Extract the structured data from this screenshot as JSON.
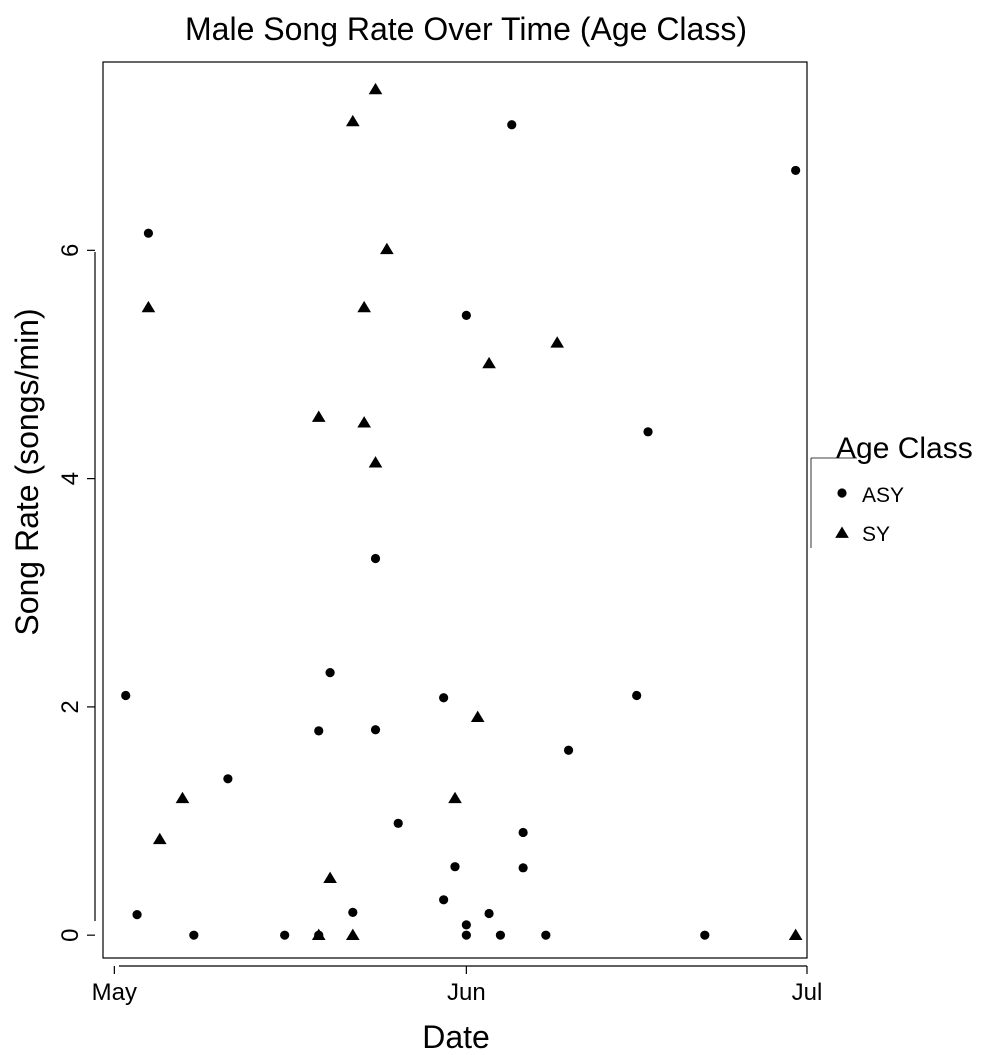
{
  "chart_data": {
    "type": "scatter",
    "title": "Male Song Rate Over Time (Age Class)",
    "xlabel": "Date",
    "ylabel": "Song Rate (songs/min)",
    "x_unit": "date",
    "xlim": [
      "2016-04-30",
      "2016-07-01"
    ],
    "ylim": [
      -0.2,
      7.65
    ],
    "x_ticks": [
      {
        "label": "May",
        "date": "2016-05-01"
      },
      {
        "label": "Jun",
        "date": "2016-06-01"
      },
      {
        "label": "Jul",
        "date": "2016-07-01"
      }
    ],
    "y_ticks": [
      0,
      2,
      4,
      6
    ],
    "grid": false,
    "legend": {
      "title": "Age Class",
      "position": "right",
      "entries": [
        {
          "label": "ASY",
          "shape": "circle"
        },
        {
          "label": "SY",
          "shape": "triangle"
        }
      ]
    },
    "series": [
      {
        "name": "ASY",
        "shape": "circle",
        "color": "#000000",
        "points": [
          {
            "x": "2016-05-02",
            "y": 2.1
          },
          {
            "x": "2016-05-03",
            "y": 0.18
          },
          {
            "x": "2016-05-04",
            "y": 6.15
          },
          {
            "x": "2016-05-08",
            "y": 0.0
          },
          {
            "x": "2016-05-11",
            "y": 1.37
          },
          {
            "x": "2016-05-16",
            "y": 0.0
          },
          {
            "x": "2016-05-19",
            "y": 0.0
          },
          {
            "x": "2016-05-19",
            "y": 1.79
          },
          {
            "x": "2016-05-20",
            "y": 2.3
          },
          {
            "x": "2016-05-22",
            "y": 0.2
          },
          {
            "x": "2016-05-24",
            "y": 3.3
          },
          {
            "x": "2016-05-24",
            "y": 1.8
          },
          {
            "x": "2016-05-26",
            "y": 0.98
          },
          {
            "x": "2016-05-30",
            "y": 2.08
          },
          {
            "x": "2016-05-30",
            "y": 0.31
          },
          {
            "x": "2016-05-31",
            "y": 0.6
          },
          {
            "x": "2016-06-01",
            "y": 5.43
          },
          {
            "x": "2016-06-01",
            "y": 0.09
          },
          {
            "x": "2016-06-01",
            "y": 0.0
          },
          {
            "x": "2016-06-03",
            "y": 0.19
          },
          {
            "x": "2016-06-04",
            "y": 0.0
          },
          {
            "x": "2016-06-05",
            "y": 7.1
          },
          {
            "x": "2016-06-06",
            "y": 0.9
          },
          {
            "x": "2016-06-06",
            "y": 0.59
          },
          {
            "x": "2016-06-08",
            "y": 0.0
          },
          {
            "x": "2016-06-10",
            "y": 1.62
          },
          {
            "x": "2016-06-16",
            "y": 2.1
          },
          {
            "x": "2016-06-17",
            "y": 4.41
          },
          {
            "x": "2016-06-22",
            "y": 0.0
          },
          {
            "x": "2016-06-30",
            "y": 6.7
          }
        ]
      },
      {
        "name": "SY",
        "shape": "triangle",
        "color": "#000000",
        "points": [
          {
            "x": "2016-05-04",
            "y": 5.5
          },
          {
            "x": "2016-05-05",
            "y": 0.84
          },
          {
            "x": "2016-05-07",
            "y": 1.2
          },
          {
            "x": "2016-05-19",
            "y": 4.54
          },
          {
            "x": "2016-05-19",
            "y": 0.0
          },
          {
            "x": "2016-05-20",
            "y": 0.5
          },
          {
            "x": "2016-05-22",
            "y": 7.13
          },
          {
            "x": "2016-05-22",
            "y": 0.0
          },
          {
            "x": "2016-05-23",
            "y": 5.5
          },
          {
            "x": "2016-05-23",
            "y": 4.49
          },
          {
            "x": "2016-05-24",
            "y": 7.41
          },
          {
            "x": "2016-05-24",
            "y": 4.14
          },
          {
            "x": "2016-05-25",
            "y": 6.01
          },
          {
            "x": "2016-05-31",
            "y": 1.2
          },
          {
            "x": "2016-06-02",
            "y": 1.91
          },
          {
            "x": "2016-06-03",
            "y": 5.01
          },
          {
            "x": "2016-06-09",
            "y": 5.19
          },
          {
            "x": "2016-06-30",
            "y": 0.0
          }
        ]
      }
    ]
  }
}
